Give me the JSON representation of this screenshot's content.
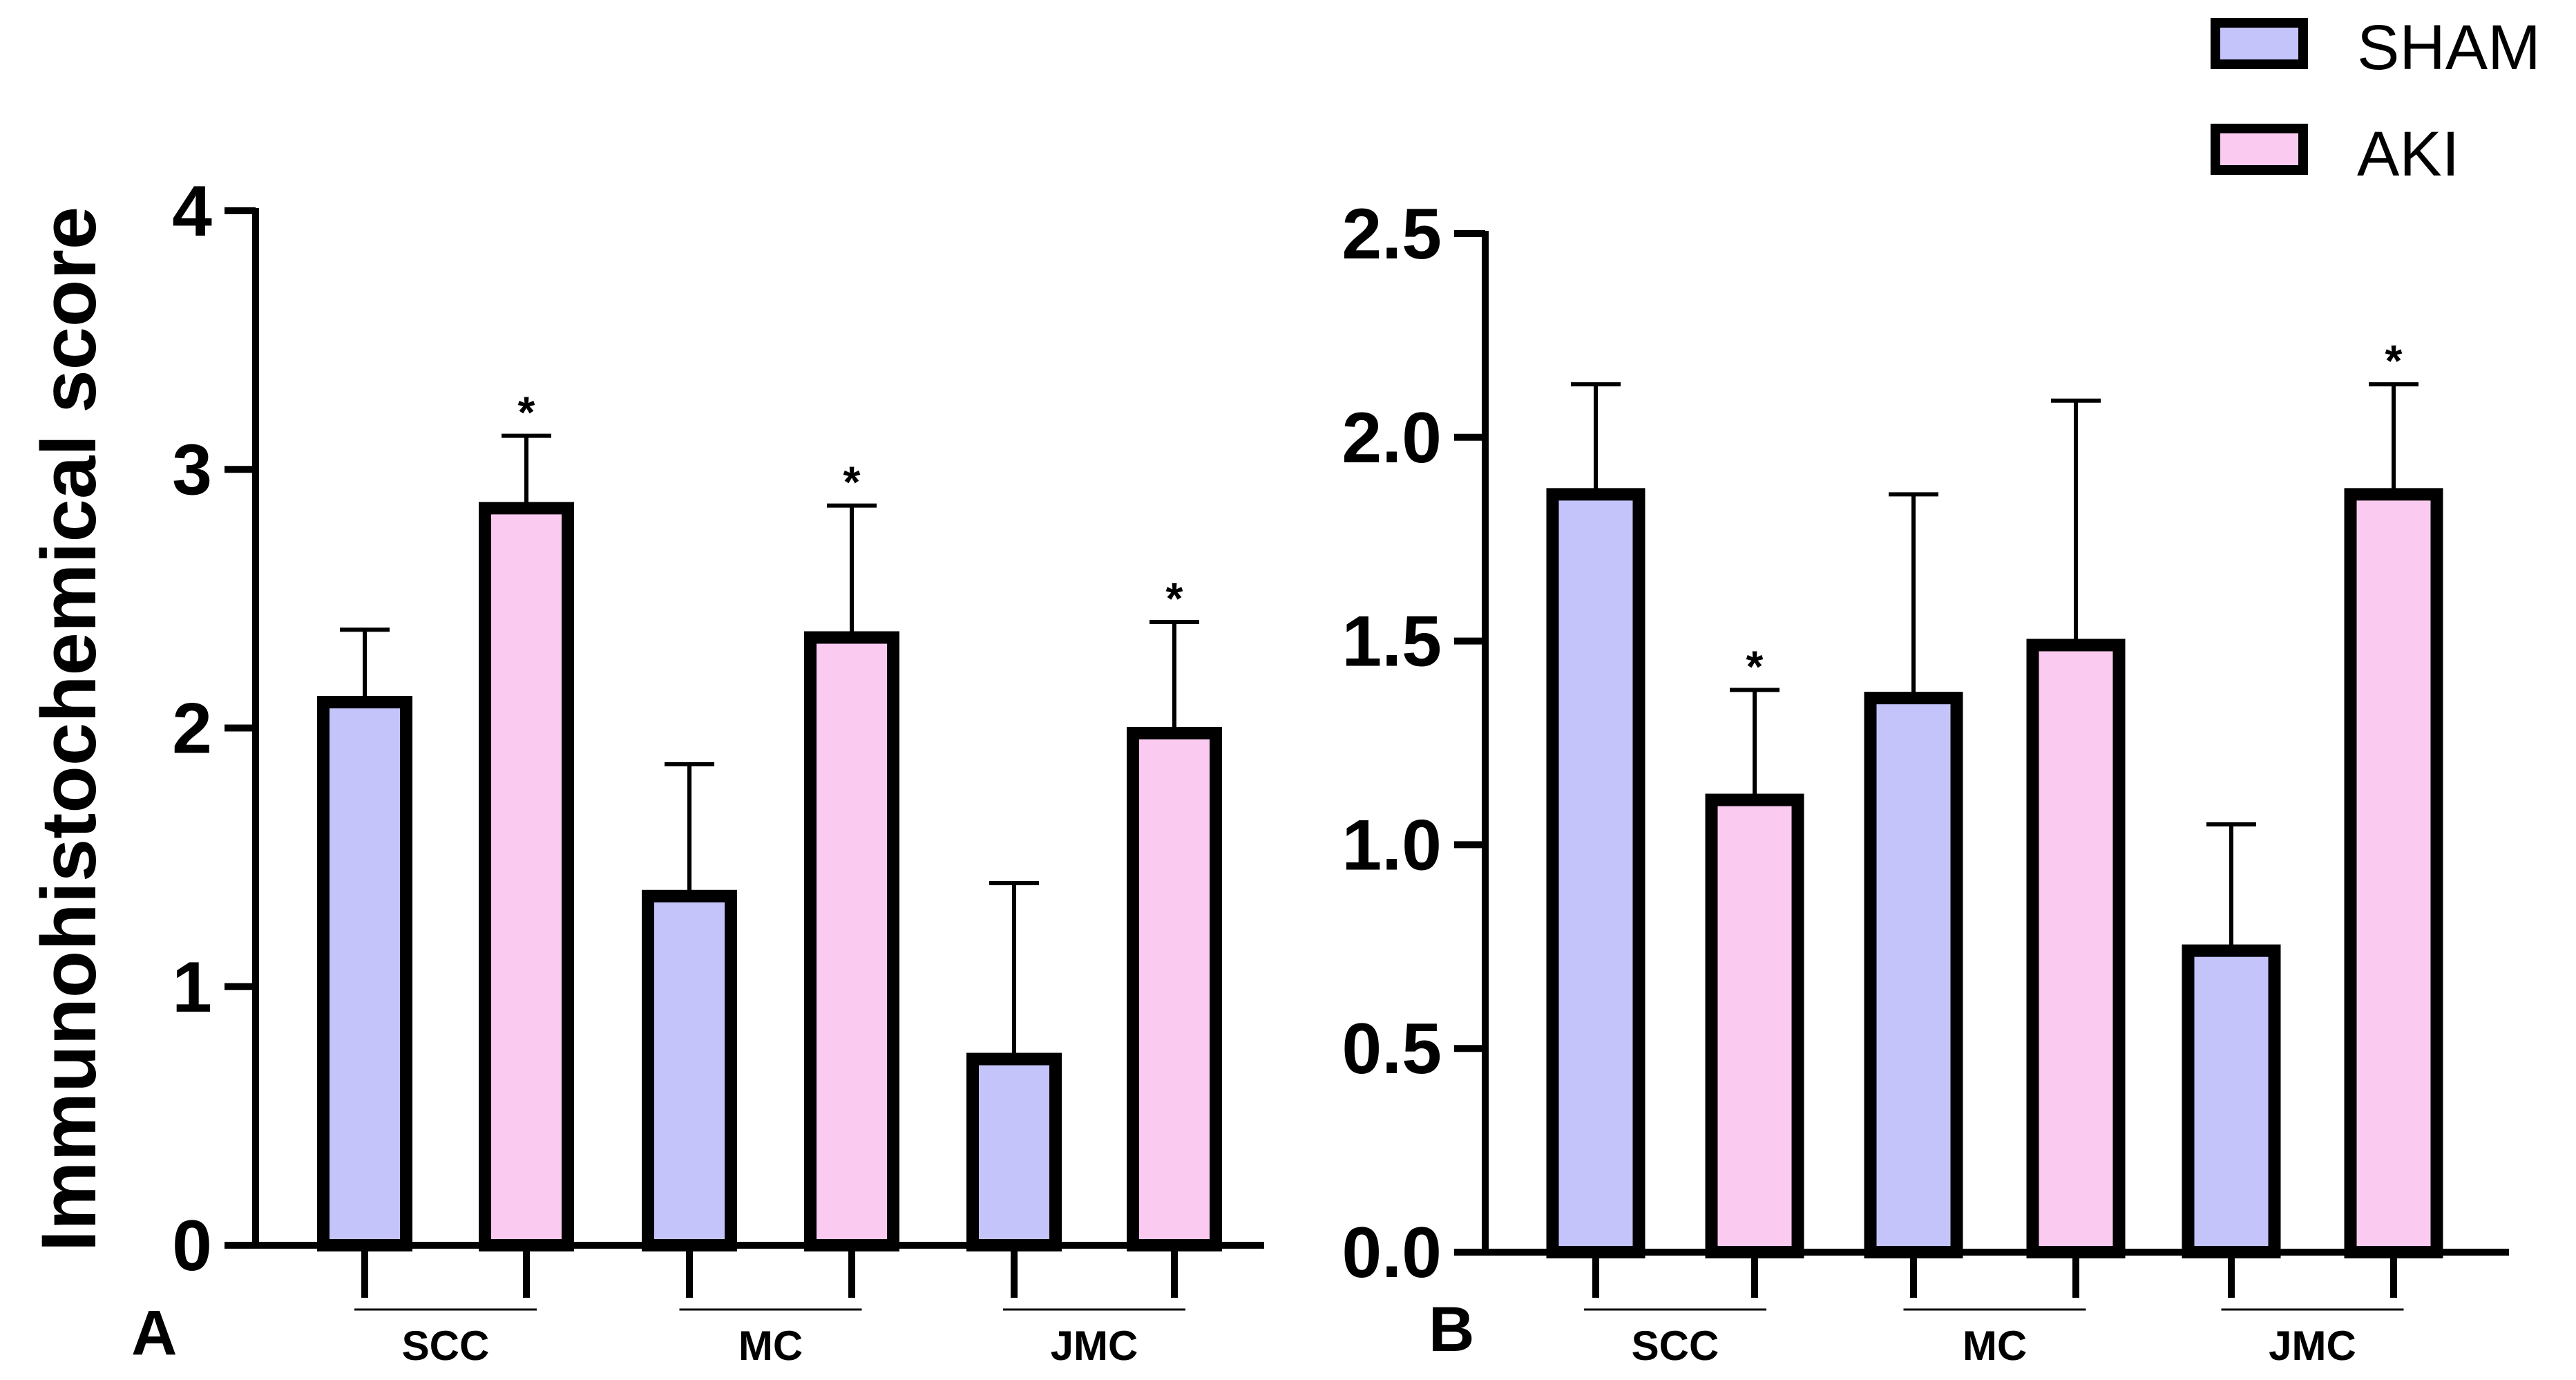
{
  "legend": {
    "items": [
      {
        "label": "SHAM",
        "color": "#c4c4fb"
      },
      {
        "label": "AKI",
        "color": "#fbcaf0"
      }
    ]
  },
  "chart_data": [
    {
      "type": "bar",
      "panel_label": "A",
      "ylabel": "Immunohistochemical score",
      "ylim": [
        0,
        4
      ],
      "yticks": [
        0,
        1,
        2,
        3,
        4
      ],
      "ytick_labels": [
        "0",
        "1",
        "2",
        "3",
        "4"
      ],
      "categories": [
        "SCC",
        "MC",
        "JMC"
      ],
      "series": [
        {
          "name": "SHAM",
          "values": [
            2.1,
            1.35,
            0.72
          ],
          "errors": [
            0.28,
            0.51,
            0.68
          ],
          "significant": [
            false,
            false,
            false
          ]
        },
        {
          "name": "AKI",
          "values": [
            2.85,
            2.35,
            1.98
          ],
          "errors": [
            0.28,
            0.51,
            0.43
          ],
          "significant": [
            true,
            true,
            true
          ]
        }
      ],
      "significance_marker": "*"
    },
    {
      "type": "bar",
      "panel_label": "B",
      "ylabel": "",
      "ylim": [
        0,
        2.5
      ],
      "yticks": [
        0,
        0.5,
        1,
        1.5,
        2,
        2.5
      ],
      "ytick_labels": [
        "0.0",
        "0.5",
        "1.0",
        "1.5",
        "2.0",
        "2.5"
      ],
      "categories": [
        "SCC",
        "MC",
        "JMC"
      ],
      "series": [
        {
          "name": "SHAM",
          "values": [
            1.86,
            1.36,
            0.74
          ],
          "errors": [
            0.27,
            0.5,
            0.31
          ],
          "significant": [
            false,
            false,
            false
          ]
        },
        {
          "name": "AKI",
          "values": [
            1.11,
            1.49,
            1.86
          ],
          "errors": [
            0.27,
            0.6,
            0.27
          ],
          "significant": [
            true,
            false,
            true
          ]
        }
      ],
      "significance_marker": "*"
    }
  ]
}
